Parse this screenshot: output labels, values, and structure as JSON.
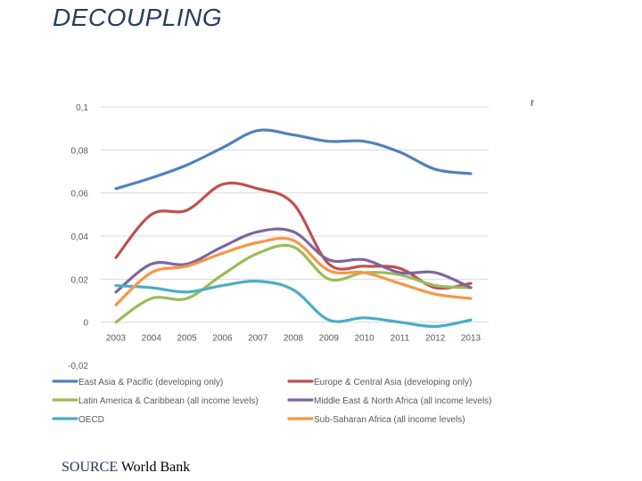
{
  "slide": {
    "title": "DECOUPLING",
    "stray_mark": "r",
    "source_label": "SOURCE",
    "source_text": "World Bank"
  },
  "chart_data": {
    "type": "line",
    "title": "",
    "xlabel": "",
    "ylabel": "",
    "x": [
      "2003",
      "2004",
      "2005",
      "2006",
      "2007",
      "2008",
      "2009",
      "2010",
      "2011",
      "2012",
      "2013"
    ],
    "ylim": [
      -0.02,
      0.1
    ],
    "yticks": [
      -0.02,
      0,
      0.02,
      0.04,
      0.06,
      0.08,
      0.1
    ],
    "ytick_labels": [
      "-0,02",
      "0",
      "0,02",
      "0,04",
      "0,06",
      "0,08",
      "0,1"
    ],
    "grid": true,
    "legend_position": "bottom",
    "series": [
      {
        "name": "East Asia & Pacific (developing only)",
        "color": "#4f81bd",
        "values": [
          0.062,
          0.067,
          0.073,
          0.081,
          0.089,
          0.087,
          0.084,
          0.084,
          0.079,
          0.071,
          0.069
        ]
      },
      {
        "name": "Europe & Central Asia (developing only)",
        "color": "#c0504d",
        "values": [
          0.03,
          0.05,
          0.052,
          0.064,
          0.062,
          0.055,
          0.027,
          0.026,
          0.025,
          0.016,
          0.018
        ]
      },
      {
        "name": "Latin America & Caribbean (all income levels)",
        "color": "#9bbb59",
        "values": [
          0.0,
          0.011,
          0.011,
          0.022,
          0.032,
          0.035,
          0.02,
          0.023,
          0.022,
          0.017,
          0.016
        ]
      },
      {
        "name": "Middle East & North Africa (all income levels)",
        "color": "#8064a2",
        "values": [
          0.014,
          0.027,
          0.027,
          0.035,
          0.042,
          0.042,
          0.029,
          0.029,
          0.023,
          0.023,
          0.016
        ]
      },
      {
        "name": "OECD",
        "color": "#4bacc6",
        "values": [
          0.017,
          0.016,
          0.014,
          0.017,
          0.019,
          0.015,
          0.001,
          0.002,
          0.0,
          -0.002,
          0.001
        ]
      },
      {
        "name": "Sub-Saharan Africa (all income levels)",
        "color": "#f79646",
        "values": [
          0.008,
          0.023,
          0.026,
          0.032,
          0.037,
          0.038,
          0.024,
          0.023,
          0.018,
          0.013,
          0.011
        ]
      }
    ]
  }
}
